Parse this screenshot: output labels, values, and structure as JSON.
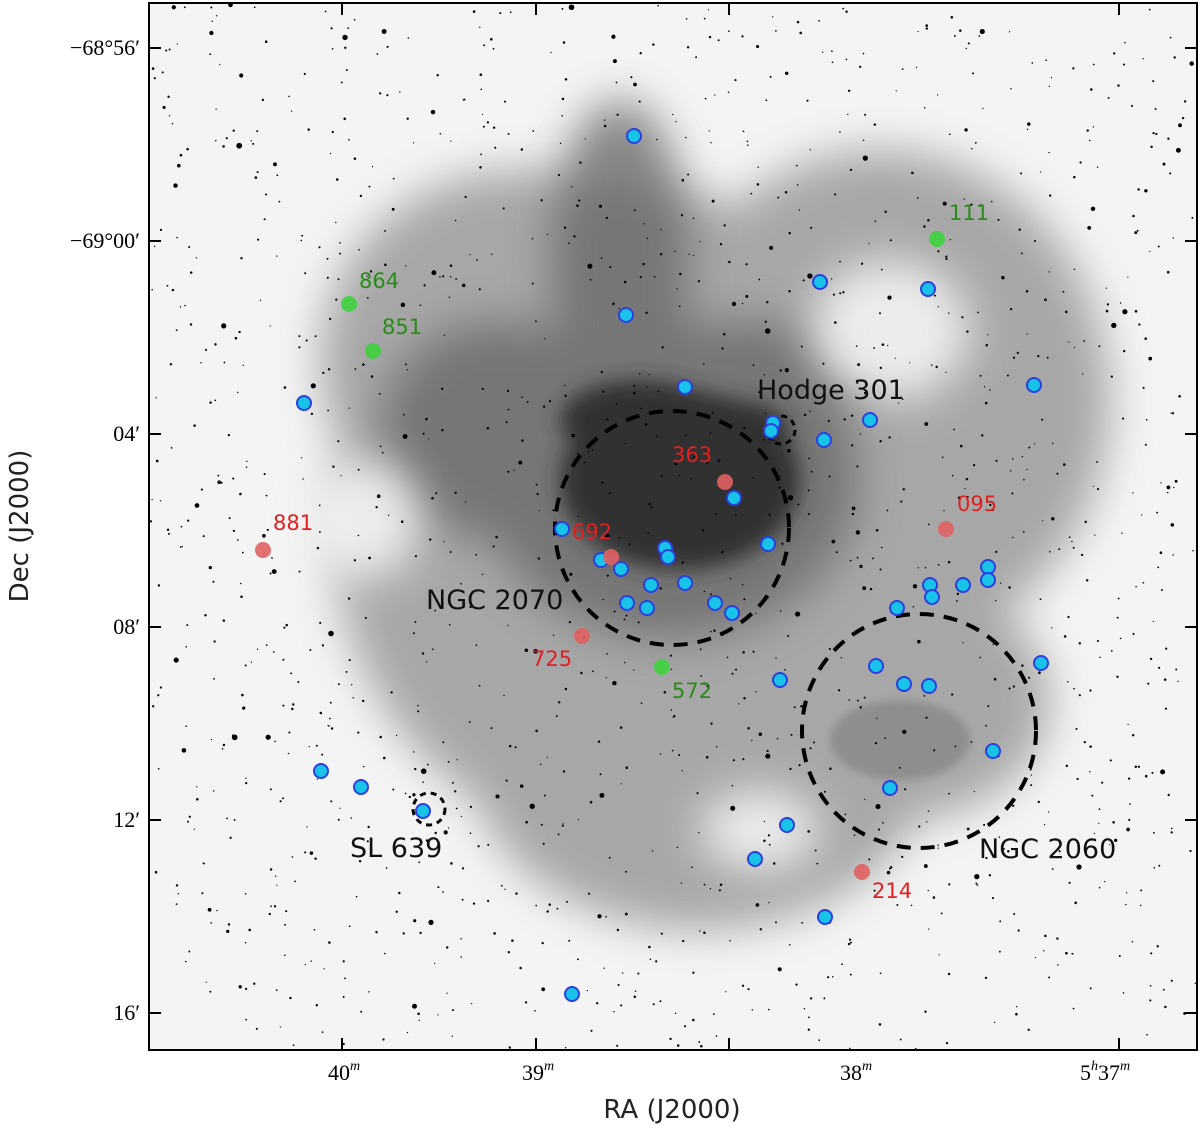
{
  "figure": {
    "x_axis_title": "RA (J2000)",
    "y_axis_title": "Dec (J2000)"
  },
  "axes": {
    "x_ticks": [
      {
        "base": "40",
        "sup": "m"
      },
      {
        "base": "39",
        "sup": "m"
      },
      {
        "base": "38",
        "sup": "m"
      },
      {
        "base": "5",
        "sup": "h",
        "base2": "37",
        "sup2": "m"
      }
    ],
    "y_ticks": [
      "−68°56′",
      "−69°00′",
      "04′",
      "08′",
      "12′",
      "16′"
    ]
  },
  "regions": [
    {
      "name": "NGC 2070",
      "kind": "large"
    },
    {
      "name": "NGC 2060",
      "kind": "large"
    },
    {
      "name": "Hodge 301",
      "kind": "small"
    },
    {
      "name": "SL 639",
      "kind": "small"
    }
  ],
  "colors": {
    "blue_marker_fill": "#19c3e8",
    "blue_marker_edge": "#2b3fe0",
    "red_marker": "#e06262",
    "green_marker": "#3fd23f",
    "red_label": "#e02020",
    "green_label": "#2a8a1a",
    "nebula": "#3c3c3c"
  },
  "labeled_stars": [
    {
      "id": "111",
      "color": "green"
    },
    {
      "id": "864",
      "color": "green"
    },
    {
      "id": "851",
      "color": "green"
    },
    {
      "id": "572",
      "color": "green"
    },
    {
      "id": "363",
      "color": "red"
    },
    {
      "id": "095",
      "color": "red"
    },
    {
      "id": "881",
      "color": "red"
    },
    {
      "id": "692",
      "color": "red"
    },
    {
      "id": "725",
      "color": "red"
    },
    {
      "id": "214",
      "color": "red"
    }
  ],
  "blue_marker_count": 42
}
